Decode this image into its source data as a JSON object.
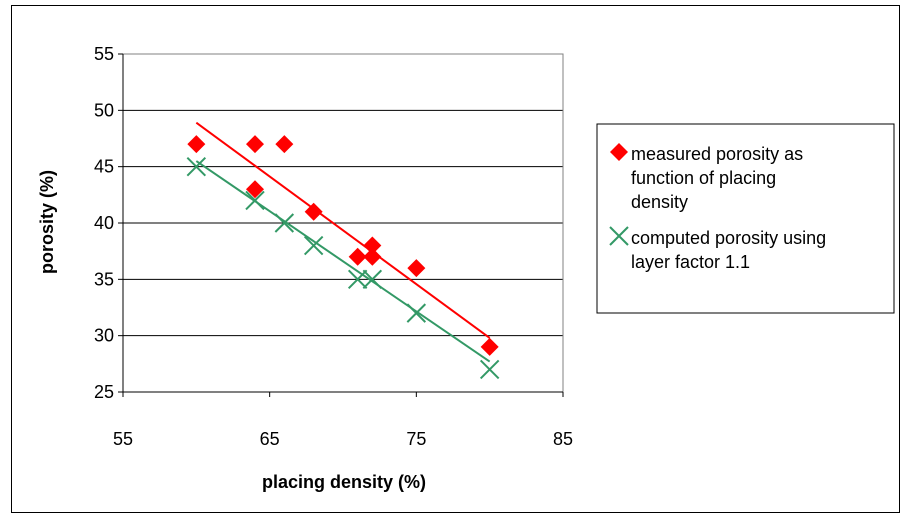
{
  "chart_data": {
    "type": "scatter",
    "xlabel": "placing density (%)",
    "ylabel": "porosity (%)",
    "xlim": [
      55,
      85
    ],
    "ylim": [
      25,
      55
    ],
    "x_ticks": [
      "55",
      "65",
      "75",
      "85"
    ],
    "y_ticks": [
      "25",
      "30",
      "35",
      "40",
      "45",
      "50",
      "55"
    ],
    "grid": "horizontal",
    "legend_position": "right",
    "series": [
      {
        "name_lines": [
          "measured porosity as",
          "function of placing",
          "density"
        ],
        "marker": "diamond",
        "color": "#ff0000",
        "points": [
          [
            60,
            47
          ],
          [
            64,
            47
          ],
          [
            66,
            47
          ],
          [
            64,
            43
          ],
          [
            68,
            41
          ],
          [
            71,
            37
          ],
          [
            72,
            38
          ],
          [
            72,
            37
          ],
          [
            75,
            36
          ],
          [
            80,
            29
          ]
        ],
        "trendline": [
          [
            60,
            48.9
          ],
          [
            80,
            29.8
          ]
        ]
      },
      {
        "name_lines": [
          "computed porosity using",
          "layer factor 1.1"
        ],
        "marker": "x",
        "color": "#339966",
        "points": [
          [
            60,
            45
          ],
          [
            64,
            42
          ],
          [
            66,
            40
          ],
          [
            68,
            38
          ],
          [
            71,
            35
          ],
          [
            72,
            35
          ],
          [
            75,
            32
          ],
          [
            80,
            27
          ]
        ],
        "trendline": [
          [
            60,
            45.5
          ],
          [
            80,
            27.7
          ]
        ]
      }
    ]
  }
}
